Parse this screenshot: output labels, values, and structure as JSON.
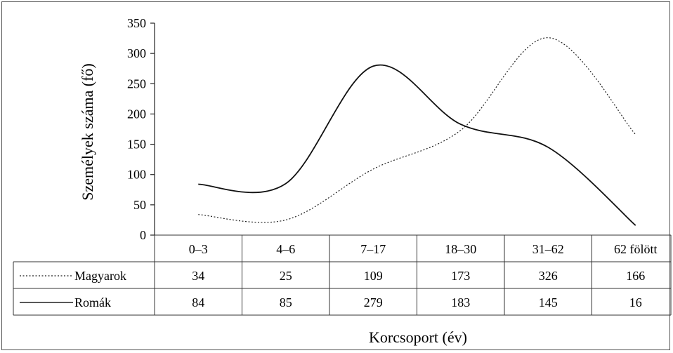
{
  "chart_data": {
    "type": "line",
    "title": "",
    "xlabel": "Korcsoport (év)",
    "ylabel": "Személyek száma (fő)",
    "ylim": [
      0,
      350
    ],
    "yticks": [
      "0",
      "50",
      "100",
      "150",
      "200",
      "250",
      "300",
      "350"
    ],
    "categories": [
      "0–3",
      "4–6",
      "7–17",
      "18–30",
      "31–62",
      "62 fölött"
    ],
    "series": [
      {
        "name": "Magyarok",
        "values": [
          34,
          25,
          109,
          173,
          326,
          166
        ],
        "style": "dotted",
        "color": "#222222"
      },
      {
        "name": "Romák",
        "values": [
          84,
          85,
          279,
          183,
          145,
          16
        ],
        "style": "solid",
        "color": "#111111"
      }
    ],
    "table_rows": [
      {
        "label": "Magyarok",
        "values": [
          "34",
          "25",
          "109",
          "173",
          "326",
          "166"
        ]
      },
      {
        "label": "Romák",
        "values": [
          "84",
          "85",
          "279",
          "183",
          "145",
          "16"
        ]
      }
    ],
    "grid": false,
    "legend": "table-left"
  }
}
